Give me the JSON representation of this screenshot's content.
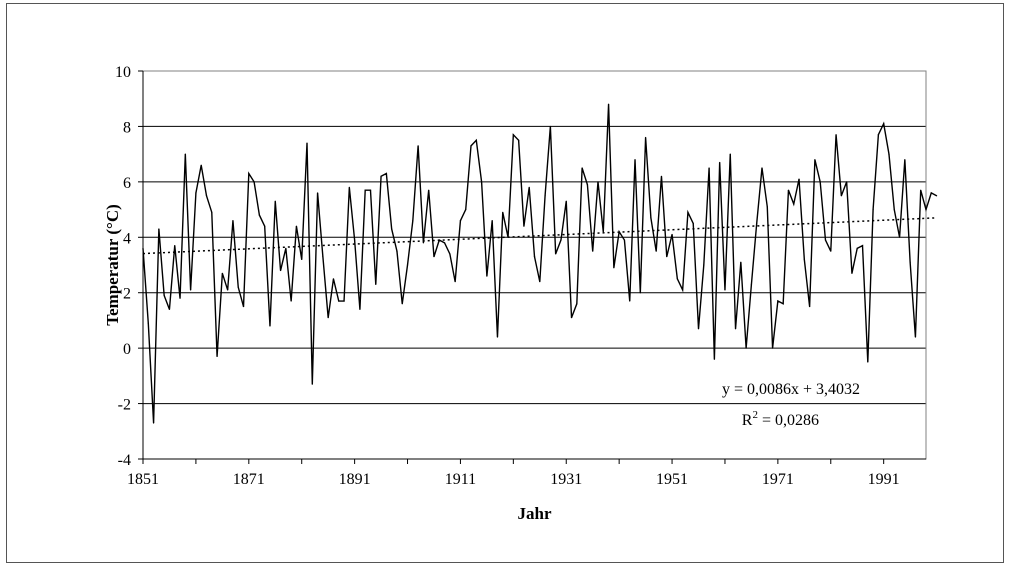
{
  "chart_data": {
    "type": "line",
    "xlabel": "Jahr",
    "ylabel": "Temperatur (°C)",
    "ylim": [
      -4,
      10
    ],
    "xlim": [
      1851,
      1999
    ],
    "yticks": [
      "-4",
      "-2",
      "0",
      "2",
      "4",
      "6",
      "8",
      "10"
    ],
    "xticks": [
      "1851",
      "1871",
      "1891",
      "1911",
      "1931",
      "1951",
      "1971",
      "1991"
    ],
    "grid": "horizontal",
    "series": [
      {
        "line_color": "#000000",
        "x_start": 1851,
        "values": [
          3.6,
          0.9,
          -2.7,
          4.3,
          1.9,
          1.4,
          3.7,
          1.8,
          7.0,
          2.1,
          5.6,
          6.6,
          5.5,
          4.9,
          -0.3,
          2.7,
          2.1,
          4.6,
          2.2,
          1.5,
          6.3,
          6.0,
          4.8,
          4.4,
          0.8,
          5.3,
          2.8,
          3.6,
          1.7,
          4.4,
          3.2,
          7.4,
          -1.3,
          5.6,
          3.3,
          1.1,
          2.5,
          1.7,
          1.7,
          5.8,
          3.9,
          1.4,
          5.7,
          5.7,
          2.3,
          6.2,
          6.3,
          4.3,
          3.5,
          1.6,
          3.0,
          4.6,
          7.3,
          3.8,
          5.7,
          3.3,
          3.9,
          3.8,
          3.4,
          2.4,
          4.6,
          5.0,
          7.3,
          7.5,
          6.0,
          2.6,
          4.6,
          0.4,
          4.9,
          4.0,
          7.7,
          7.5,
          4.4,
          5.8,
          3.3,
          2.4,
          5.5,
          8.0,
          3.4,
          3.9,
          5.3,
          1.1,
          1.6,
          6.5,
          5.9,
          3.5,
          6.0,
          4.2,
          8.8,
          2.9,
          4.2,
          3.9,
          1.7,
          6.8,
          2.0,
          7.6,
          4.7,
          3.5,
          6.2,
          3.3,
          4.1,
          2.5,
          2.1,
          4.9,
          4.5,
          0.7,
          3.0,
          6.5,
          -0.4,
          6.7,
          2.1,
          7.0,
          0.7,
          3.1,
          0.0,
          2.3,
          4.5,
          6.5,
          5.1,
          0.0,
          1.7,
          1.6,
          5.7,
          5.2,
          6.1,
          3.2,
          1.5,
          6.8,
          6.0,
          3.9,
          3.5,
          7.7,
          5.5,
          6.0,
          2.7,
          3.6,
          3.7,
          -0.5,
          5.0,
          7.7,
          8.1,
          7.0,
          5.0,
          4.0,
          6.8,
          3.1,
          0.4,
          5.7,
          5.0,
          5.6,
          5.5
        ]
      }
    ],
    "trendline": {
      "style": "dotted",
      "slope": 0.0086,
      "intercept": 3.4032,
      "equation": "y = 0,0086x + 3,4032",
      "r2_base": "R",
      "r2_exp": "2",
      "r2_value": " = 0,0286"
    }
  }
}
